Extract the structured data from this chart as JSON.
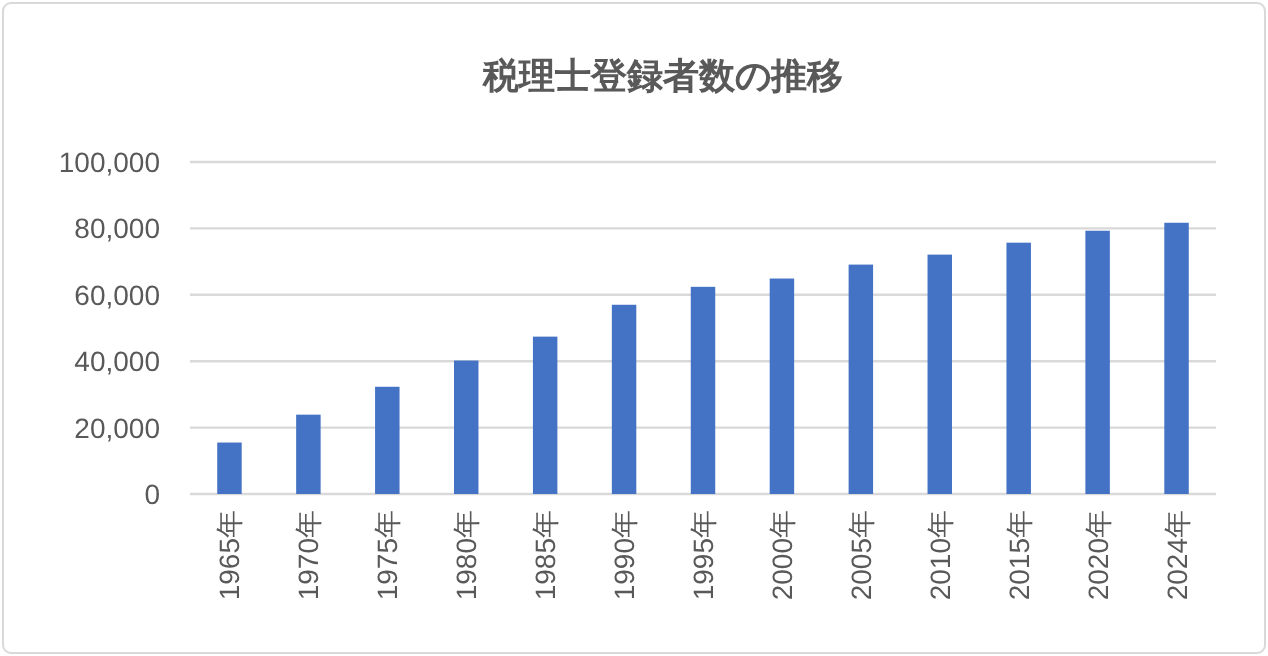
{
  "chart_data": {
    "type": "bar",
    "title": "税理士登録者数の推移",
    "categories": [
      "1965年",
      "1970年",
      "1975年",
      "1980年",
      "1985年",
      "1990年",
      "1995年",
      "2000年",
      "2005年",
      "2010年",
      "2015年",
      "2020年",
      "2024年"
    ],
    "values": [
      15500,
      23900,
      32300,
      40200,
      47400,
      57000,
      62400,
      64900,
      69100,
      72100,
      75700,
      79300,
      81700
    ],
    "color": "#4472c4",
    "ylim": [
      0,
      100000
    ],
    "yticks": [
      {
        "value": 0,
        "label": "0"
      },
      {
        "value": 20000,
        "label": "20,000"
      },
      {
        "value": 40000,
        "label": "40,000"
      },
      {
        "value": 60000,
        "label": "60,000"
      },
      {
        "value": 80000,
        "label": "80,000"
      },
      {
        "value": 100000,
        "label": "100,000"
      }
    ],
    "grid": "y"
  }
}
